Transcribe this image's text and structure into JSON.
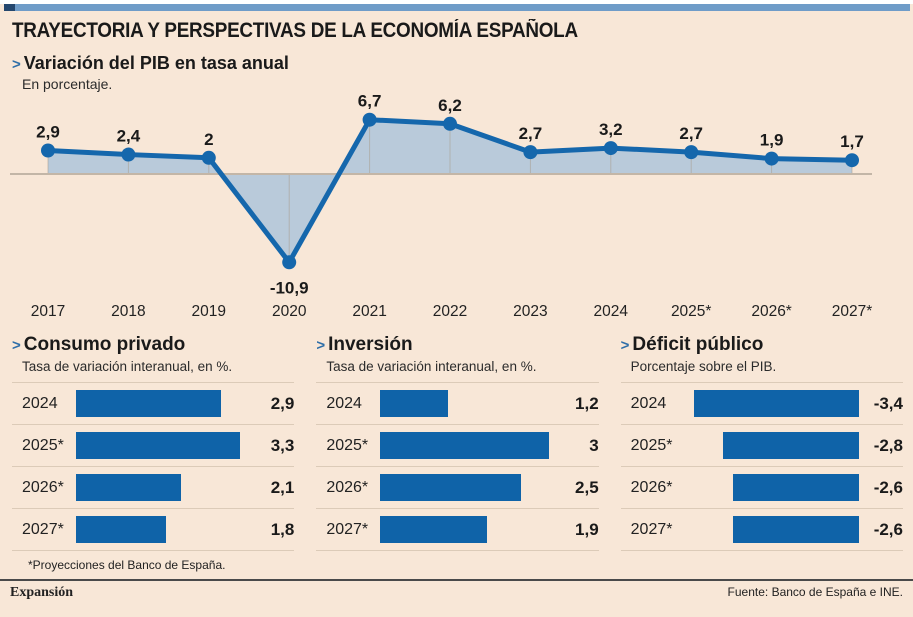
{
  "header": {
    "title": "TRAYECTORIA Y PERSPECTIVAS DE LA ECONOMÍA ESPAÑOLA"
  },
  "ui": {
    "arrow": ">"
  },
  "colors": {
    "accent_blue": "#2e6ea8",
    "line_blue": "#1567ac",
    "area_fill": "#b5c8da",
    "bar_blue": "#0f63a8",
    "zero_line": "#c3b6a7",
    "gridline": "#a89c8e",
    "background": "#f8e7d7",
    "top_bar": "#6f9cc8",
    "top_bar_cap": "#24476e"
  },
  "chart_data": [
    {
      "type": "area",
      "title": "Variación del PIB en tasa anual",
      "subtitle": "En porcentaje.",
      "categories": [
        "2017",
        "2018",
        "2019",
        "2020",
        "2021",
        "2022",
        "2023",
        "2024",
        "2025*",
        "2026*",
        "2027*"
      ],
      "values": [
        2.9,
        2.4,
        2,
        -10.9,
        6.7,
        6.2,
        2.7,
        3.2,
        2.7,
        1.9,
        1.7
      ],
      "labels": [
        "2,9",
        "2,4",
        "2",
        "-10,9",
        "6,7",
        "6,2",
        "2,7",
        "3,2",
        "2,7",
        "1,9",
        "1,7"
      ],
      "ylim": [
        -12,
        8
      ],
      "baseline": 0,
      "grid": "vertical ticks from each point to baseline",
      "legend": "none"
    },
    {
      "type": "bar",
      "orientation": "horizontal",
      "title": "Consumo privado",
      "subtitle": "Tasa de variación interanual, en %.",
      "categories": [
        "2024",
        "2025*",
        "2026*",
        "2027*"
      ],
      "values": [
        2.9,
        3.3,
        2.1,
        1.8
      ],
      "labels": [
        "2,9",
        "3,3",
        "2,1",
        "1,8"
      ],
      "xmax": 3.5,
      "align": "left"
    },
    {
      "type": "bar",
      "orientation": "horizontal",
      "title": "Inversión",
      "subtitle": "Tasa de variación interanual, en %.",
      "categories": [
        "2024",
        "2025*",
        "2026*",
        "2027*"
      ],
      "values": [
        1.2,
        3,
        2.5,
        1.9
      ],
      "labels": [
        "1,2",
        "3",
        "2,5",
        "1,9"
      ],
      "xmax": 3.1,
      "align": "left"
    },
    {
      "type": "bar",
      "orientation": "horizontal",
      "title": "Déficit público",
      "subtitle": "Porcentaje sobre el PIB.",
      "categories": [
        "2024",
        "2025*",
        "2026*",
        "2027*"
      ],
      "values": [
        -3.4,
        -2.8,
        -2.6,
        -2.6
      ],
      "labels": [
        "-3,4",
        "-2,8",
        "-2,6",
        "-2,6"
      ],
      "xmax": 3.6,
      "align": "right"
    }
  ],
  "footnote": "*Proyecciones del Banco de España.",
  "footer": {
    "brand": "Expansión",
    "source": "Fuente: Banco de España e INE."
  }
}
